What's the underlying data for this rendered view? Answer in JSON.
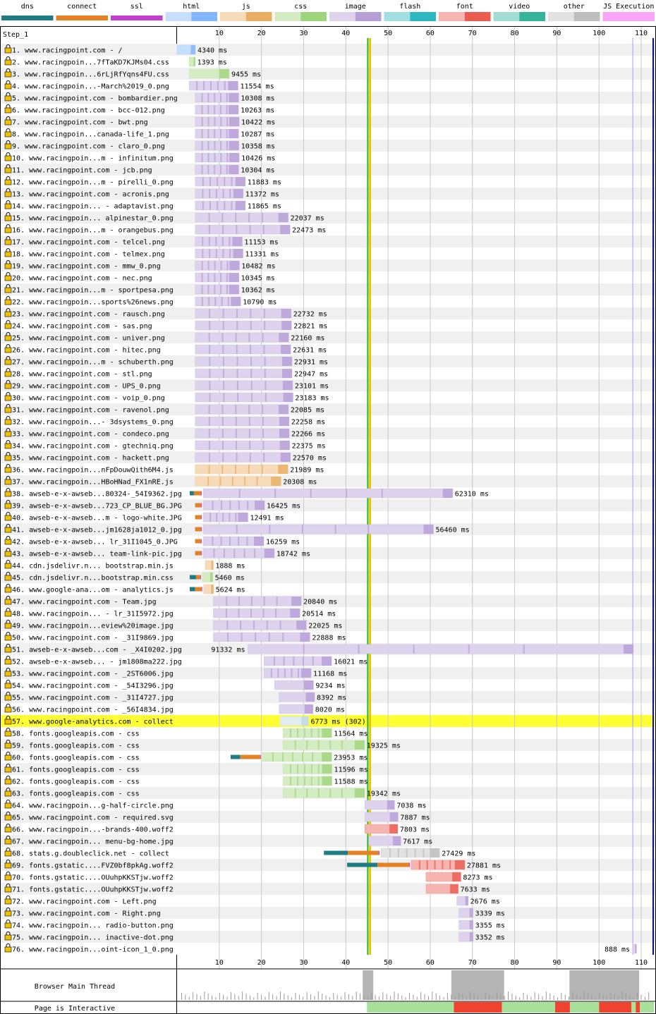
{
  "legend": [
    {
      "label": "dns",
      "color": "#1f7c83"
    },
    {
      "label": "connect",
      "color": "#e58226"
    },
    {
      "label": "ssl",
      "color": "#c141cd"
    },
    {
      "label": "html",
      "color": "#82b5fc"
    },
    {
      "label": "js",
      "color": "#e8ae61"
    },
    {
      "label": "css",
      "color": "#9fd57a"
    },
    {
      "label": "image",
      "color": "#b69ed6"
    },
    {
      "label": "flash",
      "color": "#2db7c1"
    },
    {
      "label": "font",
      "color": "#ec5b4f"
    },
    {
      "label": "video",
      "color": "#33b49b"
    },
    {
      "label": "other",
      "color": "#bebebe"
    },
    {
      "label": "JS Execution",
      "color": "#f9a6f9"
    }
  ],
  "step_label": "Step_1",
  "bottom_labels": {
    "main_thread": "Browser Main Thread",
    "interactive": "Page is Interactive"
  },
  "colors": {
    "highlight": "#ffff33",
    "start_render": "#28b328",
    "dom_loaded": "#f0c000",
    "onload": "#0000ff",
    "lock": "#f0c000"
  },
  "chart_data": {
    "type": "waterfall",
    "x_unit": "seconds",
    "xlim": [
      0,
      113
    ],
    "x_ticks": [
      10,
      20,
      30,
      40,
      50,
      60,
      70,
      80,
      90,
      100,
      110
    ],
    "markers": {
      "start_render": 45.2,
      "dom_content_loaded": 45.8,
      "onload_start": 108.0,
      "onload_end": 113.0
    },
    "highlighted_request": 57,
    "requests": [
      {
        "n": 1,
        "url": "www.racingpoint.com - /",
        "type": "html",
        "start": 0.0,
        "dur": 4.34,
        "label": "4340 ms"
      },
      {
        "n": 2,
        "url": "www.racingpoin...7fTaKD7KJMs04.css",
        "type": "css",
        "start": 2.9,
        "dur": 1.39,
        "label": "1393 ms"
      },
      {
        "n": 3,
        "url": "www.racingpoin...6rLjRfYqns4FU.css",
        "type": "css",
        "start": 2.9,
        "dur": 9.46,
        "label": "9455 ms"
      },
      {
        "n": 4,
        "url": "www.racingpoin...-March%2019_0.png",
        "type": "image",
        "start": 2.9,
        "dur": 11.55,
        "label": "11554 ms"
      },
      {
        "n": 5,
        "url": "www.racingpoint.com - bombardier.png",
        "type": "image",
        "start": 4.3,
        "dur": 10.31,
        "label": "10308 ms"
      },
      {
        "n": 6,
        "url": "www.racingpoint.com - bcc-012.png",
        "type": "image",
        "start": 4.3,
        "dur": 10.26,
        "label": "10263 ms"
      },
      {
        "n": 7,
        "url": "www.racingpoint.com - bwt.png",
        "type": "image",
        "start": 4.3,
        "dur": 10.42,
        "label": "10422 ms"
      },
      {
        "n": 8,
        "url": "www.racingpoin...canada-life_1.png",
        "type": "image",
        "start": 4.3,
        "dur": 10.29,
        "label": "10287 ms"
      },
      {
        "n": 9,
        "url": "www.racingpoint.com - claro_0.png",
        "type": "image",
        "start": 4.3,
        "dur": 10.36,
        "label": "10358 ms"
      },
      {
        "n": 10,
        "url": "www.racingpoin...m - infinitum.png",
        "type": "image",
        "start": 4.3,
        "dur": 10.43,
        "label": "10426 ms"
      },
      {
        "n": 11,
        "url": "www.racingpoint.com - jcb.png",
        "type": "image",
        "start": 4.3,
        "dur": 10.3,
        "label": "10304 ms"
      },
      {
        "n": 12,
        "url": "www.racingpoin...m - pirelli_0.png",
        "type": "image",
        "start": 4.3,
        "dur": 11.88,
        "label": "11883 ms"
      },
      {
        "n": 13,
        "url": "www.racingpoint.com - acronis.png",
        "type": "image",
        "start": 4.3,
        "dur": 11.37,
        "label": "11372 ms"
      },
      {
        "n": 14,
        "url": "www.racingpoin... - adaptavist.png",
        "type": "image",
        "start": 4.3,
        "dur": 11.87,
        "label": "11865 ms"
      },
      {
        "n": 15,
        "url": "www.racingpoin... alpinestar_0.png",
        "type": "image",
        "start": 4.3,
        "dur": 22.04,
        "label": "22037 ms"
      },
      {
        "n": 16,
        "url": "www.racingpoin...m - orangebus.png",
        "type": "image",
        "start": 4.3,
        "dur": 22.47,
        "label": "22473 ms"
      },
      {
        "n": 17,
        "url": "www.racingpoint.com - telcel.png",
        "type": "image",
        "start": 4.3,
        "dur": 11.15,
        "label": "11153 ms"
      },
      {
        "n": 18,
        "url": "www.racingpoint.com - telmex.png",
        "type": "image",
        "start": 4.3,
        "dur": 11.33,
        "label": "11331 ms"
      },
      {
        "n": 19,
        "url": "www.racingpoint.com - mmw_0.png",
        "type": "image",
        "start": 4.3,
        "dur": 10.48,
        "label": "10482 ms"
      },
      {
        "n": 20,
        "url": "www.racingpoint.com - nec.png",
        "type": "image",
        "start": 4.3,
        "dur": 10.35,
        "label": "10345 ms"
      },
      {
        "n": 21,
        "url": "www.racingpoin...m - sportpesa.png",
        "type": "image",
        "start": 4.3,
        "dur": 10.36,
        "label": "10362 ms"
      },
      {
        "n": 22,
        "url": "www.racingpoin...sports%26news.png",
        "type": "image",
        "start": 4.3,
        "dur": 10.79,
        "label": "10790 ms"
      },
      {
        "n": 23,
        "url": "www.racingpoint.com - rausch.png",
        "type": "image",
        "start": 4.3,
        "dur": 22.73,
        "label": "22732 ms"
      },
      {
        "n": 24,
        "url": "www.racingpoint.com - sas.png",
        "type": "image",
        "start": 4.3,
        "dur": 22.82,
        "label": "22821 ms"
      },
      {
        "n": 25,
        "url": "www.racingpoint.com - univer.png",
        "type": "image",
        "start": 4.3,
        "dur": 22.16,
        "label": "22160 ms"
      },
      {
        "n": 26,
        "url": "www.racingpoint.com - hitec.png",
        "type": "image",
        "start": 4.3,
        "dur": 22.63,
        "label": "22631 ms"
      },
      {
        "n": 27,
        "url": "www.racingpoin...m - schuberth.png",
        "type": "image",
        "start": 4.3,
        "dur": 22.93,
        "label": "22931 ms"
      },
      {
        "n": 28,
        "url": "www.racingpoint.com - stl.png",
        "type": "image",
        "start": 4.3,
        "dur": 22.95,
        "label": "22947 ms"
      },
      {
        "n": 29,
        "url": "www.racingpoint.com - UPS_0.png",
        "type": "image",
        "start": 4.3,
        "dur": 23.1,
        "label": "23101 ms"
      },
      {
        "n": 30,
        "url": "www.racingpoint.com - voip_0.png",
        "type": "image",
        "start": 4.3,
        "dur": 23.18,
        "label": "23183 ms"
      },
      {
        "n": 31,
        "url": "www.racingpoint.com - ravenol.png",
        "type": "image",
        "start": 4.3,
        "dur": 22.09,
        "label": "22085 ms"
      },
      {
        "n": 32,
        "url": "www.racingpoin...- 3dsystems_0.png",
        "type": "image",
        "start": 4.3,
        "dur": 22.26,
        "label": "22258 ms"
      },
      {
        "n": 33,
        "url": "www.racingpoint.com - condeco.png",
        "type": "image",
        "start": 4.3,
        "dur": 22.27,
        "label": "22266 ms"
      },
      {
        "n": 34,
        "url": "www.racingpoint.com - gtechniq.png",
        "type": "image",
        "start": 4.3,
        "dur": 22.38,
        "label": "22375 ms"
      },
      {
        "n": 35,
        "url": "www.racingpoint.com - hackett.png",
        "type": "image",
        "start": 4.3,
        "dur": 22.57,
        "label": "22570 ms"
      },
      {
        "n": 36,
        "url": "www.racingpoin...nFpDouwQith6M4.js",
        "type": "js",
        "start": 4.3,
        "dur": 21.99,
        "label": "21989 ms"
      },
      {
        "n": 37,
        "url": "www.racingpoin...HBoHNad_FX1nRE.js",
        "type": "js",
        "start": 4.3,
        "dur": 20.31,
        "label": "20308 ms"
      },
      {
        "n": 38,
        "url": "awseb-e-x-awseb...80324-_54I9362.jpg",
        "type": "image",
        "start": 3.0,
        "dur": 62.31,
        "label": "62310 ms",
        "conn": [
          3.0,
          4.0,
          5.7
        ]
      },
      {
        "n": 39,
        "url": "awseb-e-x-awseb...723_CP_BLUE_BG.JPG",
        "type": "image",
        "start": 4.3,
        "dur": 16.43,
        "label": "16425 ms",
        "conn": [
          4.3,
          4.3,
          5.7
        ]
      },
      {
        "n": 40,
        "url": "awseb-e-x-awseb...m - logo-white.JPG",
        "type": "image",
        "start": 4.3,
        "dur": 12.49,
        "label": "12491 ms",
        "conn": [
          4.3,
          4.3,
          5.7
        ]
      },
      {
        "n": 41,
        "url": "awseb-e-x-awseb...jm1628ja1012_0.jpg",
        "type": "image",
        "start": 4.3,
        "dur": 56.46,
        "label": "56460 ms",
        "conn": [
          4.3,
          4.3,
          5.7
        ]
      },
      {
        "n": 42,
        "url": "awseb-e-x-awseb... lr_31I1045_0.JPG",
        "type": "image",
        "start": 4.3,
        "dur": 16.26,
        "label": "16259 ms",
        "conn": [
          4.3,
          4.3,
          5.7
        ]
      },
      {
        "n": 43,
        "url": "awseb-e-x-awseb... team-link-pic.jpg",
        "type": "image",
        "start": 4.3,
        "dur": 18.74,
        "label": "18742 ms",
        "conn": [
          4.3,
          4.3,
          5.7
        ]
      },
      {
        "n": 44,
        "url": "cdn.jsdelivr.n... bootstrap.min.js",
        "type": "js",
        "start": 6.7,
        "dur": 1.89,
        "label": "1888 ms"
      },
      {
        "n": 45,
        "url": "cdn.jsdelivr.n...bootstrap.min.css",
        "type": "css",
        "start": 3.0,
        "dur": 5.46,
        "label": "5460 ms",
        "conn": [
          3.0,
          4.5,
          5.5
        ]
      },
      {
        "n": 46,
        "url": "www.google-ana...om - analytics.js",
        "type": "js",
        "start": 3.0,
        "dur": 5.62,
        "label": "5624 ms",
        "conn": [
          3.0,
          4.3,
          5.8
        ]
      },
      {
        "n": 47,
        "url": "www.racingpoint.com - Team.jpg",
        "type": "image",
        "start": 8.6,
        "dur": 20.84,
        "label": "20840 ms"
      },
      {
        "n": 48,
        "url": "www.racingpoin... - lr_31I5972.jpg",
        "type": "image",
        "start": 8.6,
        "dur": 20.51,
        "label": "20514 ms"
      },
      {
        "n": 49,
        "url": "www.racingpoin...eview%20image.jpg",
        "type": "image",
        "start": 8.6,
        "dur": 22.03,
        "label": "22025 ms"
      },
      {
        "n": 50,
        "url": "www.racingpoint.com - _31I9869.jpg",
        "type": "image",
        "start": 8.6,
        "dur": 22.89,
        "label": "22888 ms"
      },
      {
        "n": 51,
        "url": "awseb-e-x-awseb...com - _X4I0202.jpg",
        "type": "image",
        "start": 16.8,
        "dur": 91.33,
        "label": "91332 ms",
        "label_left": true
      },
      {
        "n": 52,
        "url": "awseb-e-x-awseb... - jm1808ma222.jpg",
        "type": "image",
        "start": 20.6,
        "dur": 16.02,
        "label": "16021 ms"
      },
      {
        "n": 53,
        "url": "www.racingpoint.com - _2ST6006.jpg",
        "type": "image",
        "start": 20.6,
        "dur": 11.17,
        "label": "11168 ms"
      },
      {
        "n": 54,
        "url": "www.racingpoint.com - _54I3296.jpg",
        "type": "image",
        "start": 23.1,
        "dur": 9.23,
        "label": "9234 ms"
      },
      {
        "n": 55,
        "url": "www.racingpoint.com - _31I4727.jpg",
        "type": "image",
        "start": 24.2,
        "dur": 8.39,
        "label": "8392 ms"
      },
      {
        "n": 56,
        "url": "www.racingpoint.com - _56I4834.jpg",
        "type": "image",
        "start": 24.2,
        "dur": 8.02,
        "label": "8020 ms"
      },
      {
        "n": 57,
        "url": "www.google-analytics.com - collect",
        "type": "redirect",
        "start": 24.4,
        "dur": 6.77,
        "label": "6773 ms (302)"
      },
      {
        "n": 58,
        "url": "fonts.googleapis.com - css",
        "type": "css",
        "start": 25.1,
        "dur": 11.56,
        "label": "11564 ms"
      },
      {
        "n": 59,
        "url": "fonts.googleapis.com - css",
        "type": "css",
        "start": 25.1,
        "dur": 19.33,
        "label": "19325 ms"
      },
      {
        "n": 60,
        "url": "fonts.googleapis.com - css",
        "type": "css",
        "start": 12.7,
        "dur": 23.95,
        "label": "23953 ms",
        "conn": [
          12.7,
          15.0,
          19.7
        ]
      },
      {
        "n": 61,
        "url": "fonts.googleapis.com - css",
        "type": "css",
        "start": 25.1,
        "dur": 11.6,
        "label": "11596 ms"
      },
      {
        "n": 62,
        "url": "fonts.googleapis.com - css",
        "type": "css",
        "start": 25.1,
        "dur": 11.59,
        "label": "11588 ms"
      },
      {
        "n": 63,
        "url": "fonts.googleapis.com - css",
        "type": "css",
        "start": 25.1,
        "dur": 19.34,
        "label": "19342 ms"
      },
      {
        "n": 64,
        "url": "www.racingpoin...g-half-circle.png",
        "type": "image",
        "start": 44.5,
        "dur": 7.04,
        "label": "7038 ms"
      },
      {
        "n": 65,
        "url": "www.racingpoint.com - required.svg",
        "type": "image",
        "start": 44.5,
        "dur": 7.89,
        "label": "7887 ms"
      },
      {
        "n": 66,
        "url": "www.racingpoin...-brands-400.woff2",
        "type": "font",
        "start": 44.5,
        "dur": 7.8,
        "label": "7803 ms"
      },
      {
        "n": 67,
        "url": "www.racingpoin... menu-bg-home.jpg",
        "type": "image",
        "start": 45.4,
        "dur": 7.62,
        "label": "7617 ms"
      },
      {
        "n": 68,
        "url": "stats.g.doubleclick.net - collect",
        "type": "other",
        "start": 34.8,
        "dur": 27.43,
        "label": "27429 ms",
        "conn": [
          34.8,
          40.5,
          47.8
        ]
      },
      {
        "n": 69,
        "url": "fonts.gstatic....FVZ0bf8pkAg.woff2",
        "type": "font",
        "start": 40.3,
        "dur": 27.88,
        "label": "27881 ms",
        "conn": [
          40.3,
          47.5,
          55.0
        ]
      },
      {
        "n": 70,
        "url": "fonts.gstatic....OUuhpKKSTjw.woff2",
        "type": "font",
        "start": 59.0,
        "dur": 8.27,
        "label": "8273 ms"
      },
      {
        "n": 71,
        "url": "fonts.gstatic....OUuhpKKSTjw.woff2",
        "type": "font",
        "start": 59.0,
        "dur": 7.63,
        "label": "7633 ms"
      },
      {
        "n": 72,
        "url": "www.racingpoint.com - Left.png",
        "type": "image",
        "start": 66.3,
        "dur": 2.68,
        "label": "2676 ms"
      },
      {
        "n": 73,
        "url": "www.racingpoint.com - Right.png",
        "type": "image",
        "start": 66.8,
        "dur": 3.34,
        "label": "3339 ms"
      },
      {
        "n": 74,
        "url": "www.racingpoin... radio-button.png",
        "type": "image",
        "start": 66.8,
        "dur": 3.36,
        "label": "3355 ms"
      },
      {
        "n": 75,
        "url": "www.racingpoin... inactive-dot.png",
        "type": "image",
        "start": 66.8,
        "dur": 3.35,
        "label": "3352 ms"
      },
      {
        "n": 76,
        "url": "www.racingpoin...oint-icon_1_0.png",
        "type": "image",
        "start": 108.0,
        "dur": 0.89,
        "label": "888 ms",
        "label_left": true
      }
    ],
    "interactive_segments": [
      {
        "from": 45.0,
        "to": 65.6,
        "state": "interactive"
      },
      {
        "from": 65.6,
        "to": 77.0,
        "state": "blocked"
      },
      {
        "from": 77.0,
        "to": 89.6,
        "state": "interactive"
      },
      {
        "from": 89.6,
        "to": 93.1,
        "state": "blocked"
      },
      {
        "from": 93.1,
        "to": 100.0,
        "state": "interactive"
      },
      {
        "from": 100.0,
        "to": 107.7,
        "state": "blocked"
      },
      {
        "from": 107.7,
        "to": 108.7,
        "state": "interactive"
      },
      {
        "from": 108.7,
        "to": 109.7,
        "state": "blocked"
      },
      {
        "from": 109.7,
        "to": 113.0,
        "state": "interactive"
      }
    ],
    "main_thread_busy": [
      {
        "from": 44.0,
        "to": 46.5
      },
      {
        "from": 65.0,
        "to": 77.5
      },
      {
        "from": 93.0,
        "to": 109.5
      }
    ]
  }
}
